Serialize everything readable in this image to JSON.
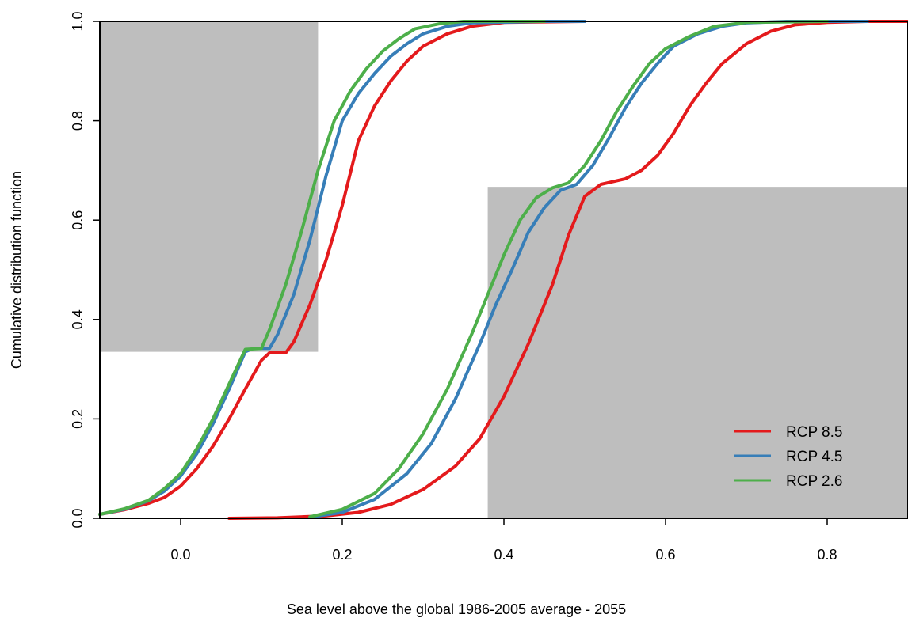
{
  "chart_data": {
    "type": "line",
    "title": "",
    "xlabel": "Sea level above the global 1986-2005 average - 2055",
    "ylabel": "Cumulative distribution function",
    "xlim": [
      -0.1,
      0.9
    ],
    "ylim": [
      0.0,
      1.0
    ],
    "x_ticks": [
      0.0,
      0.2,
      0.4,
      0.6,
      0.8
    ],
    "x_tick_labels": [
      "0.0",
      "0.2",
      "0.4",
      "0.6",
      "0.8"
    ],
    "y_ticks": [
      0.0,
      0.2,
      0.4,
      0.6,
      0.8,
      1.0
    ],
    "y_tick_labels": [
      "0.0",
      "0.2",
      "0.4",
      "0.6",
      "0.8",
      "1.0"
    ],
    "grid": false,
    "legend_position": "bottom-right",
    "shaded_regions": [
      {
        "x": [
          -0.1,
          0.17
        ],
        "y": [
          0.335,
          1.0
        ],
        "color": "#bebebe"
      },
      {
        "x": [
          0.38,
          0.9
        ],
        "y": [
          0.0,
          0.667
        ],
        "color": "#bebebe"
      }
    ],
    "series": [
      {
        "name": "RCP 8.5",
        "color": "#e41a1c",
        "curves": [
          [
            [
              -0.1,
              0.008
            ],
            [
              -0.07,
              0.017
            ],
            [
              -0.04,
              0.03
            ],
            [
              -0.02,
              0.042
            ],
            [
              0.0,
              0.065
            ],
            [
              0.02,
              0.1
            ],
            [
              0.04,
              0.145
            ],
            [
              0.06,
              0.2
            ],
            [
              0.08,
              0.26
            ],
            [
              0.1,
              0.318
            ],
            [
              0.11,
              0.333
            ],
            [
              0.13,
              0.333
            ],
            [
              0.14,
              0.355
            ],
            [
              0.16,
              0.43
            ],
            [
              0.18,
              0.52
            ],
            [
              0.2,
              0.63
            ],
            [
              0.22,
              0.76
            ],
            [
              0.24,
              0.83
            ],
            [
              0.26,
              0.88
            ],
            [
              0.28,
              0.92
            ],
            [
              0.3,
              0.95
            ],
            [
              0.33,
              0.975
            ],
            [
              0.36,
              0.99
            ],
            [
              0.4,
              0.998
            ],
            [
              0.5,
              1.0
            ],
            [
              0.5,
              1.0
            ]
          ],
          [
            [
              0.06,
              0.0
            ],
            [
              0.12,
              0.001
            ],
            [
              0.18,
              0.005
            ],
            [
              0.22,
              0.012
            ],
            [
              0.26,
              0.028
            ],
            [
              0.3,
              0.058
            ],
            [
              0.34,
              0.105
            ],
            [
              0.37,
              0.16
            ],
            [
              0.4,
              0.245
            ],
            [
              0.43,
              0.35
            ],
            [
              0.46,
              0.47
            ],
            [
              0.48,
              0.57
            ],
            [
              0.5,
              0.648
            ],
            [
              0.52,
              0.672
            ],
            [
              0.55,
              0.683
            ],
            [
              0.57,
              0.7
            ],
            [
              0.59,
              0.73
            ],
            [
              0.61,
              0.775
            ],
            [
              0.63,
              0.83
            ],
            [
              0.65,
              0.875
            ],
            [
              0.67,
              0.915
            ],
            [
              0.7,
              0.955
            ],
            [
              0.73,
              0.98
            ],
            [
              0.76,
              0.993
            ],
            [
              0.8,
              0.998
            ],
            [
              0.85,
              1.0
            ],
            [
              0.9,
              1.0
            ]
          ]
        ]
      },
      {
        "name": "RCP 4.5",
        "color": "#377eb8",
        "curves": [
          [
            [
              -0.1,
              0.008
            ],
            [
              -0.07,
              0.018
            ],
            [
              -0.04,
              0.035
            ],
            [
              -0.02,
              0.055
            ],
            [
              0.0,
              0.085
            ],
            [
              0.02,
              0.13
            ],
            [
              0.04,
              0.19
            ],
            [
              0.06,
              0.26
            ],
            [
              0.08,
              0.335
            ],
            [
              0.09,
              0.342
            ],
            [
              0.11,
              0.342
            ],
            [
              0.12,
              0.37
            ],
            [
              0.14,
              0.45
            ],
            [
              0.16,
              0.56
            ],
            [
              0.18,
              0.69
            ],
            [
              0.2,
              0.8
            ],
            [
              0.22,
              0.855
            ],
            [
              0.24,
              0.895
            ],
            [
              0.26,
              0.93
            ],
            [
              0.28,
              0.955
            ],
            [
              0.3,
              0.975
            ],
            [
              0.33,
              0.99
            ],
            [
              0.36,
              0.997
            ],
            [
              0.45,
              1.0
            ],
            [
              0.5,
              1.0
            ]
          ],
          [
            [
              0.16,
              0.002
            ],
            [
              0.2,
              0.012
            ],
            [
              0.24,
              0.038
            ],
            [
              0.28,
              0.09
            ],
            [
              0.31,
              0.15
            ],
            [
              0.34,
              0.24
            ],
            [
              0.37,
              0.35
            ],
            [
              0.39,
              0.43
            ],
            [
              0.41,
              0.5
            ],
            [
              0.43,
              0.575
            ],
            [
              0.45,
              0.625
            ],
            [
              0.47,
              0.66
            ],
            [
              0.49,
              0.672
            ],
            [
              0.51,
              0.71
            ],
            [
              0.53,
              0.765
            ],
            [
              0.55,
              0.825
            ],
            [
              0.57,
              0.875
            ],
            [
              0.59,
              0.915
            ],
            [
              0.61,
              0.95
            ],
            [
              0.64,
              0.975
            ],
            [
              0.67,
              0.99
            ],
            [
              0.7,
              0.997
            ],
            [
              0.75,
              1.0
            ],
            [
              0.85,
              1.0
            ]
          ]
        ]
      },
      {
        "name": "RCP 2.6",
        "color": "#4daf4a",
        "curves": [
          [
            [
              -0.1,
              0.008
            ],
            [
              -0.07,
              0.019
            ],
            [
              -0.04,
              0.036
            ],
            [
              -0.02,
              0.06
            ],
            [
              0.0,
              0.09
            ],
            [
              0.02,
              0.14
            ],
            [
              0.04,
              0.2
            ],
            [
              0.06,
              0.27
            ],
            [
              0.08,
              0.34
            ],
            [
              0.1,
              0.342
            ],
            [
              0.11,
              0.38
            ],
            [
              0.13,
              0.47
            ],
            [
              0.15,
              0.58
            ],
            [
              0.17,
              0.7
            ],
            [
              0.19,
              0.8
            ],
            [
              0.21,
              0.86
            ],
            [
              0.23,
              0.905
            ],
            [
              0.25,
              0.94
            ],
            [
              0.27,
              0.965
            ],
            [
              0.29,
              0.985
            ],
            [
              0.32,
              0.995
            ],
            [
              0.35,
              1.0
            ],
            [
              0.45,
              1.0
            ]
          ],
          [
            [
              0.16,
              0.003
            ],
            [
              0.2,
              0.018
            ],
            [
              0.24,
              0.05
            ],
            [
              0.27,
              0.1
            ],
            [
              0.3,
              0.17
            ],
            [
              0.33,
              0.26
            ],
            [
              0.36,
              0.37
            ],
            [
              0.38,
              0.45
            ],
            [
              0.4,
              0.53
            ],
            [
              0.42,
              0.6
            ],
            [
              0.44,
              0.645
            ],
            [
              0.46,
              0.665
            ],
            [
              0.48,
              0.675
            ],
            [
              0.5,
              0.71
            ],
            [
              0.52,
              0.76
            ],
            [
              0.54,
              0.82
            ],
            [
              0.56,
              0.87
            ],
            [
              0.58,
              0.915
            ],
            [
              0.6,
              0.945
            ],
            [
              0.63,
              0.97
            ],
            [
              0.66,
              0.99
            ],
            [
              0.7,
              0.998
            ],
            [
              0.8,
              1.0
            ]
          ]
        ]
      }
    ]
  }
}
